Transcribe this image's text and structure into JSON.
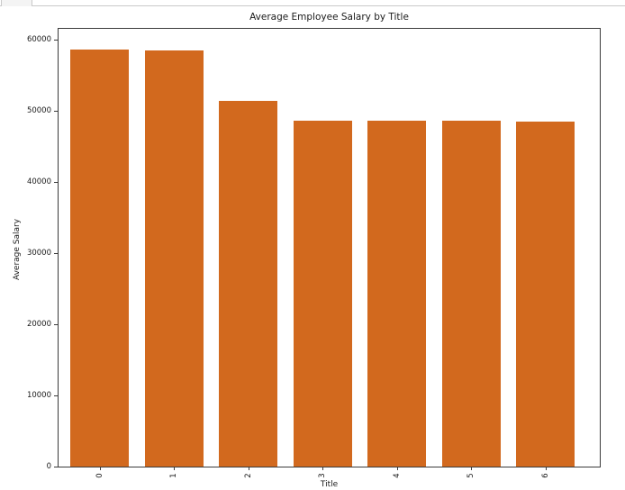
{
  "toolbar_fragment": {
    "border_color": "#c9c9c9",
    "cell_fill": "#f4f4f4"
  },
  "chart_data": {
    "type": "bar",
    "title": "Average Employee Salary by Title",
    "xlabel": "Title",
    "ylabel": "Average Salary",
    "categories": [
      "0",
      "1",
      "2",
      "3",
      "4",
      "5",
      "6"
    ],
    "values": [
      58550,
      58470,
      51420,
      48580,
      48560,
      48540,
      48510
    ],
    "yticks": [
      0,
      10000,
      20000,
      30000,
      40000,
      50000,
      60000
    ],
    "ylim": [
      0,
      61500
    ],
    "x_tick_rotation": 90,
    "grid": false,
    "legend": "none",
    "bar_color": "#d2691e",
    "spine_color": "#3a3a3a",
    "text_color": "#1a1a1a",
    "background_color": "#ffffff"
  }
}
